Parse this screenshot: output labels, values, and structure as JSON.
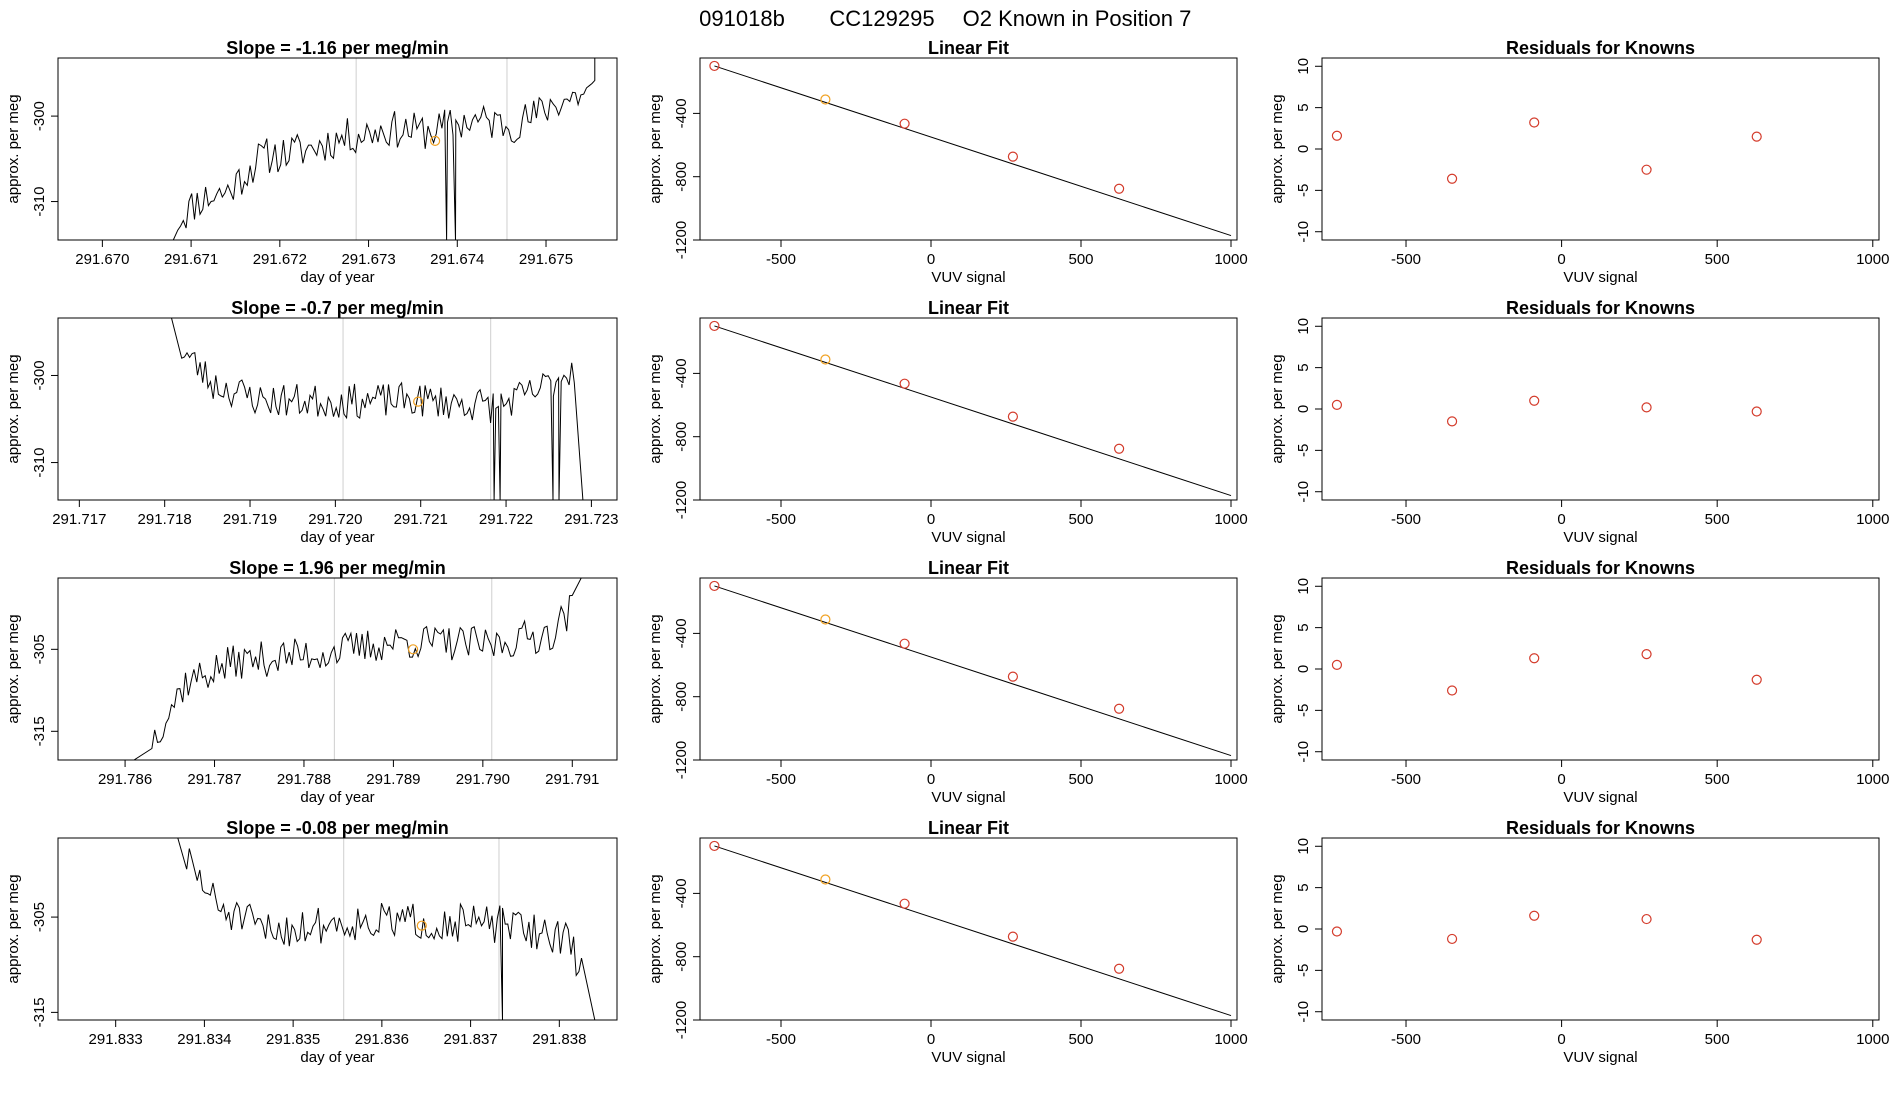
{
  "figure": {
    "title_parts": [
      "091018b",
      "CC129295",
      "O2 Known in Position  7"
    ],
    "colors": {
      "trace": "#000000",
      "vline": "#cfcfcf",
      "known": "#d43c2c",
      "highlight": "#f0a020",
      "frame": "#000000"
    }
  },
  "chart_data": [
    {
      "row": 1,
      "type": "line",
      "kind": "trace",
      "title": "Slope =  -1.16  per meg/min",
      "xlabel": "day of year",
      "ylabel": "approx. per meg",
      "xlim": [
        291.6695,
        291.6758
      ],
      "ylim": [
        -314.5,
        -293.2
      ],
      "xticks": [
        "291.670",
        "291.671",
        "291.672",
        "291.673",
        "291.674",
        "291.675"
      ],
      "xtick_values": [
        291.67,
        291.671,
        291.672,
        291.673,
        291.674,
        291.675
      ],
      "yticks": [
        "-300",
        "-310"
      ],
      "ytick_values": [
        -300,
        -310
      ],
      "vlines": [
        291.67286,
        291.67456
      ],
      "marker": {
        "x": 291.67375,
        "y": -302.9
      },
      "trace": {
        "x_start": 291.67085,
        "x_end": 291.67555,
        "ends": [
          {
            "x": 291.6708,
            "y": -314.5
          },
          {
            "x": 291.67555,
            "y": -293.2
          }
        ],
        "spikes": [
          {
            "x": 291.67388,
            "y": -314.5
          },
          {
            "x": 291.67398,
            "y": -314.5
          }
        ],
        "anchors": [
          [
            0,
            -312.2
          ],
          [
            0.05,
            -309.8
          ],
          [
            0.12,
            -308.8
          ],
          [
            0.2,
            -304.8
          ],
          [
            0.3,
            -304.0
          ],
          [
            0.4,
            -302.5
          ],
          [
            0.5,
            -301.5
          ],
          [
            0.6,
            -301.8
          ],
          [
            0.7,
            -300.5
          ],
          [
            0.8,
            -301.0
          ],
          [
            0.85,
            -300.2
          ],
          [
            0.9,
            -298.5
          ],
          [
            1,
            -297
          ]
        ],
        "noise": 2.2,
        "seed": 11
      }
    },
    {
      "row": 1,
      "type": "scatter",
      "kind": "fit",
      "title": "Linear Fit",
      "xlabel": "VUV signal",
      "ylabel": "approx. per meg",
      "xlim": [
        -770,
        1020
      ],
      "ylim": [
        -1200,
        -50
      ],
      "xticks": [
        "-500",
        "0",
        "500",
        "1000"
      ],
      "xtick_values": [
        -500,
        0,
        500,
        1000
      ],
      "yticks": [
        "-400",
        "-800",
        "-1200"
      ],
      "ytick_values": [
        -400,
        -800,
        -1200
      ],
      "points": [
        [
          -722,
          -100
        ],
        [
          -352,
          -312
        ],
        [
          -88,
          -465
        ],
        [
          273,
          -673
        ],
        [
          627,
          -876
        ]
      ],
      "highlight_index": 1,
      "fit_line": [
        [
          -722,
          -100
        ],
        [
          1000,
          -1172
        ]
      ]
    },
    {
      "row": 1,
      "type": "scatter",
      "kind": "resid",
      "title": "Residuals for Knowns",
      "xlabel": "VUV signal",
      "ylabel": "approx. per meg",
      "xlim": [
        -770,
        1020
      ],
      "ylim": [
        -11,
        11
      ],
      "xticks": [
        "-500",
        "0",
        "500",
        "1000"
      ],
      "xtick_values": [
        -500,
        0,
        500,
        1000
      ],
      "yticks": [
        "10",
        "5",
        "0",
        "-5",
        "-10"
      ],
      "ytick_values": [
        10,
        5,
        0,
        -5,
        -10
      ],
      "points": [
        [
          -722,
          1.6
        ],
        [
          -352,
          -3.6
        ],
        [
          -88,
          3.2
        ],
        [
          273,
          -2.5
        ],
        [
          627,
          1.5
        ]
      ]
    },
    {
      "row": 2,
      "type": "line",
      "kind": "trace",
      "title": "Slope =  -0.7  per meg/min",
      "xlabel": "day of year",
      "ylabel": "approx. per meg",
      "xlim": [
        291.71675,
        291.7233
      ],
      "ylim": [
        -314.3,
        -293.4
      ],
      "xticks": [
        "291.717",
        "291.718",
        "291.719",
        "291.720",
        "291.721",
        "291.722",
        "291.723"
      ],
      "xtick_values": [
        291.717,
        291.718,
        291.719,
        291.72,
        291.721,
        291.722,
        291.723
      ],
      "yticks": [
        "-300",
        "-310"
      ],
      "ytick_values": [
        -300,
        -310
      ],
      "vlines": [
        291.72009,
        291.72182
      ],
      "marker": {
        "x": 291.72097,
        "y": -303.0
      },
      "trace": {
        "x_start": 291.7182,
        "x_end": 291.7228,
        "ends": [
          {
            "x": 291.71808,
            "y": -293.4
          },
          {
            "x": 291.7229,
            "y": -314.3
          }
        ],
        "spikes": [
          {
            "x": 291.72186,
            "y": -314.3
          },
          {
            "x": 291.72193,
            "y": -314.3
          },
          {
            "x": 291.72255,
            "y": -314.3
          },
          {
            "x": 291.72262,
            "y": -314.3
          }
        ],
        "anchors": [
          [
            0,
            -297
          ],
          [
            0.08,
            -301
          ],
          [
            0.2,
            -302.8
          ],
          [
            0.4,
            -303
          ],
          [
            0.6,
            -302.8
          ],
          [
            0.8,
            -303.5
          ],
          [
            0.9,
            -302
          ],
          [
            1,
            -299
          ]
        ],
        "noise": 2.0,
        "seed": 23
      }
    },
    {
      "row": 2,
      "type": "scatter",
      "kind": "fit",
      "title": "Linear Fit",
      "xlabel": "VUV signal",
      "ylabel": "approx. per meg",
      "xlim": [
        -770,
        1020
      ],
      "ylim": [
        -1200,
        -50
      ],
      "xticks": [
        "-500",
        "0",
        "500",
        "1000"
      ],
      "xtick_values": [
        -500,
        0,
        500,
        1000
      ],
      "yticks": [
        "-400",
        "-800",
        "-1200"
      ],
      "ytick_values": [
        -400,
        -800,
        -1200
      ],
      "points": [
        [
          -722,
          -100
        ],
        [
          -352,
          -312
        ],
        [
          -88,
          -465
        ],
        [
          273,
          -673
        ],
        [
          627,
          -876
        ]
      ],
      "highlight_index": 1,
      "fit_line": [
        [
          -722,
          -100
        ],
        [
          1000,
          -1172
        ]
      ]
    },
    {
      "row": 2,
      "type": "scatter",
      "kind": "resid",
      "title": "Residuals for Knowns",
      "xlabel": "VUV signal",
      "ylabel": "approx. per meg",
      "xlim": [
        -770,
        1020
      ],
      "ylim": [
        -11,
        11
      ],
      "xticks": [
        "-500",
        "0",
        "500",
        "1000"
      ],
      "xtick_values": [
        -500,
        0,
        500,
        1000
      ],
      "yticks": [
        "10",
        "5",
        "0",
        "-5",
        "-10"
      ],
      "ytick_values": [
        10,
        5,
        0,
        -5,
        -10
      ],
      "points": [
        [
          -722,
          0.5
        ],
        [
          -352,
          -1.5
        ],
        [
          -88,
          1.0
        ],
        [
          273,
          0.2
        ],
        [
          627,
          -0.3
        ]
      ]
    },
    {
      "row": 3,
      "type": "line",
      "kind": "trace",
      "title": "Slope =  1.96  per meg/min",
      "xlabel": "day of year",
      "ylabel": "approx. per meg",
      "xlim": [
        291.78525,
        291.7915
      ],
      "ylim": [
        -318.5,
        -296.3
      ],
      "xticks": [
        "291.786",
        "291.787",
        "291.788",
        "291.789",
        "291.790",
        "291.791"
      ],
      "xtick_values": [
        291.786,
        291.787,
        291.788,
        291.789,
        291.79,
        291.791
      ],
      "yticks": [
        "-305",
        "-315"
      ],
      "ytick_values": [
        -305,
        -315
      ],
      "vlines": [
        291.78834,
        291.7901
      ],
      "marker": {
        "x": 291.78922,
        "y": -305.0
      },
      "trace": {
        "x_start": 291.7863,
        "x_end": 291.791,
        "ends": [
          {
            "x": 291.7861,
            "y": -318.5
          },
          {
            "x": 291.7911,
            "y": -296.3
          }
        ],
        "spikes": [],
        "anchors": [
          [
            0,
            -316
          ],
          [
            0.08,
            -309
          ],
          [
            0.2,
            -306.5
          ],
          [
            0.4,
            -305.5
          ],
          [
            0.6,
            -304
          ],
          [
            0.8,
            -304.5
          ],
          [
            0.95,
            -303
          ],
          [
            1,
            -300
          ]
        ],
        "noise": 2.2,
        "seed": 37
      }
    },
    {
      "row": 3,
      "type": "scatter",
      "kind": "fit",
      "title": "Linear Fit",
      "xlabel": "VUV signal",
      "ylabel": "approx. per meg",
      "xlim": [
        -770,
        1020
      ],
      "ylim": [
        -1200,
        -50
      ],
      "xticks": [
        "-500",
        "0",
        "500",
        "1000"
      ],
      "xtick_values": [
        -500,
        0,
        500,
        1000
      ],
      "yticks": [
        "-400",
        "-800",
        "-1200"
      ],
      "ytick_values": [
        -400,
        -800,
        -1200
      ],
      "points": [
        [
          -722,
          -100
        ],
        [
          -352,
          -312
        ],
        [
          -88,
          -465
        ],
        [
          273,
          -673
        ],
        [
          627,
          -876
        ]
      ],
      "highlight_index": 1,
      "fit_line": [
        [
          -722,
          -100
        ],
        [
          1000,
          -1172
        ]
      ]
    },
    {
      "row": 3,
      "type": "scatter",
      "kind": "resid",
      "title": "Residuals for Knowns",
      "xlabel": "VUV signal",
      "ylabel": "approx. per meg",
      "xlim": [
        -770,
        1020
      ],
      "ylim": [
        -11,
        11
      ],
      "xticks": [
        "-500",
        "0",
        "500",
        "1000"
      ],
      "xtick_values": [
        -500,
        0,
        500,
        1000
      ],
      "yticks": [
        "10",
        "5",
        "0",
        "-5",
        "-10"
      ],
      "ytick_values": [
        10,
        5,
        0,
        -5,
        -10
      ],
      "points": [
        [
          -722,
          0.5
        ],
        [
          -352,
          -2.6
        ],
        [
          -88,
          1.3
        ],
        [
          273,
          1.8
        ],
        [
          627,
          -1.3
        ]
      ]
    },
    {
      "row": 4,
      "type": "line",
      "kind": "trace",
      "title": "Slope =  -0.08  per meg/min",
      "xlabel": "day of year",
      "ylabel": "approx. per meg",
      "xlim": [
        291.83235,
        291.83865
      ],
      "ylim": [
        -315.8,
        -296.7
      ],
      "xticks": [
        "291.833",
        "291.834",
        "291.835",
        "291.836",
        "291.837",
        "291.838"
      ],
      "xtick_values": [
        291.833,
        291.834,
        291.835,
        291.836,
        291.837,
        291.838
      ],
      "yticks": [
        "-305",
        "-315"
      ],
      "ytick_values": [
        -305,
        -315
      ],
      "vlines": [
        291.83557,
        291.83732
      ],
      "marker": {
        "x": 291.83645,
        "y": -305.9
      },
      "trace": {
        "x_start": 291.8338,
        "x_end": 291.83825,
        "ends": [
          {
            "x": 291.8337,
            "y": -296.7
          },
          {
            "x": 291.8384,
            "y": -315.8
          }
        ],
        "spikes": [
          {
            "x": 291.83736,
            "y": -315.8
          }
        ],
        "anchors": [
          [
            0,
            -299
          ],
          [
            0.08,
            -304
          ],
          [
            0.2,
            -306.5
          ],
          [
            0.4,
            -305.5
          ],
          [
            0.6,
            -305.5
          ],
          [
            0.8,
            -305.8
          ],
          [
            0.95,
            -307
          ],
          [
            1,
            -310
          ]
        ],
        "noise": 2.0,
        "seed": 51
      }
    },
    {
      "row": 4,
      "type": "scatter",
      "kind": "fit",
      "title": "Linear Fit",
      "xlabel": "VUV signal",
      "ylabel": "approx. per meg",
      "xlim": [
        -770,
        1020
      ],
      "ylim": [
        -1200,
        -50
      ],
      "xticks": [
        "-500",
        "0",
        "500",
        "1000"
      ],
      "xtick_values": [
        -500,
        0,
        500,
        1000
      ],
      "yticks": [
        "-400",
        "-800",
        "-1200"
      ],
      "ytick_values": [
        -400,
        -800,
        -1200
      ],
      "points": [
        [
          -722,
          -100
        ],
        [
          -352,
          -312
        ],
        [
          -88,
          -465
        ],
        [
          273,
          -673
        ],
        [
          627,
          -876
        ]
      ],
      "highlight_index": 1,
      "fit_line": [
        [
          -722,
          -100
        ],
        [
          1000,
          -1172
        ]
      ]
    },
    {
      "row": 4,
      "type": "scatter",
      "kind": "resid",
      "title": "Residuals for Knowns",
      "xlabel": "VUV signal",
      "ylabel": "approx. per meg",
      "xlim": [
        -770,
        1020
      ],
      "ylim": [
        -11,
        11
      ],
      "xticks": [
        "-500",
        "0",
        "500",
        "1000"
      ],
      "xtick_values": [
        -500,
        0,
        500,
        1000
      ],
      "yticks": [
        "10",
        "5",
        "0",
        "-5",
        "-10"
      ],
      "ytick_values": [
        10,
        5,
        0,
        -5,
        -10
      ],
      "points": [
        [
          -722,
          -0.3
        ],
        [
          -352,
          -1.2
        ],
        [
          -88,
          1.6
        ],
        [
          273,
          1.2
        ],
        [
          627,
          -1.3
        ]
      ]
    }
  ]
}
